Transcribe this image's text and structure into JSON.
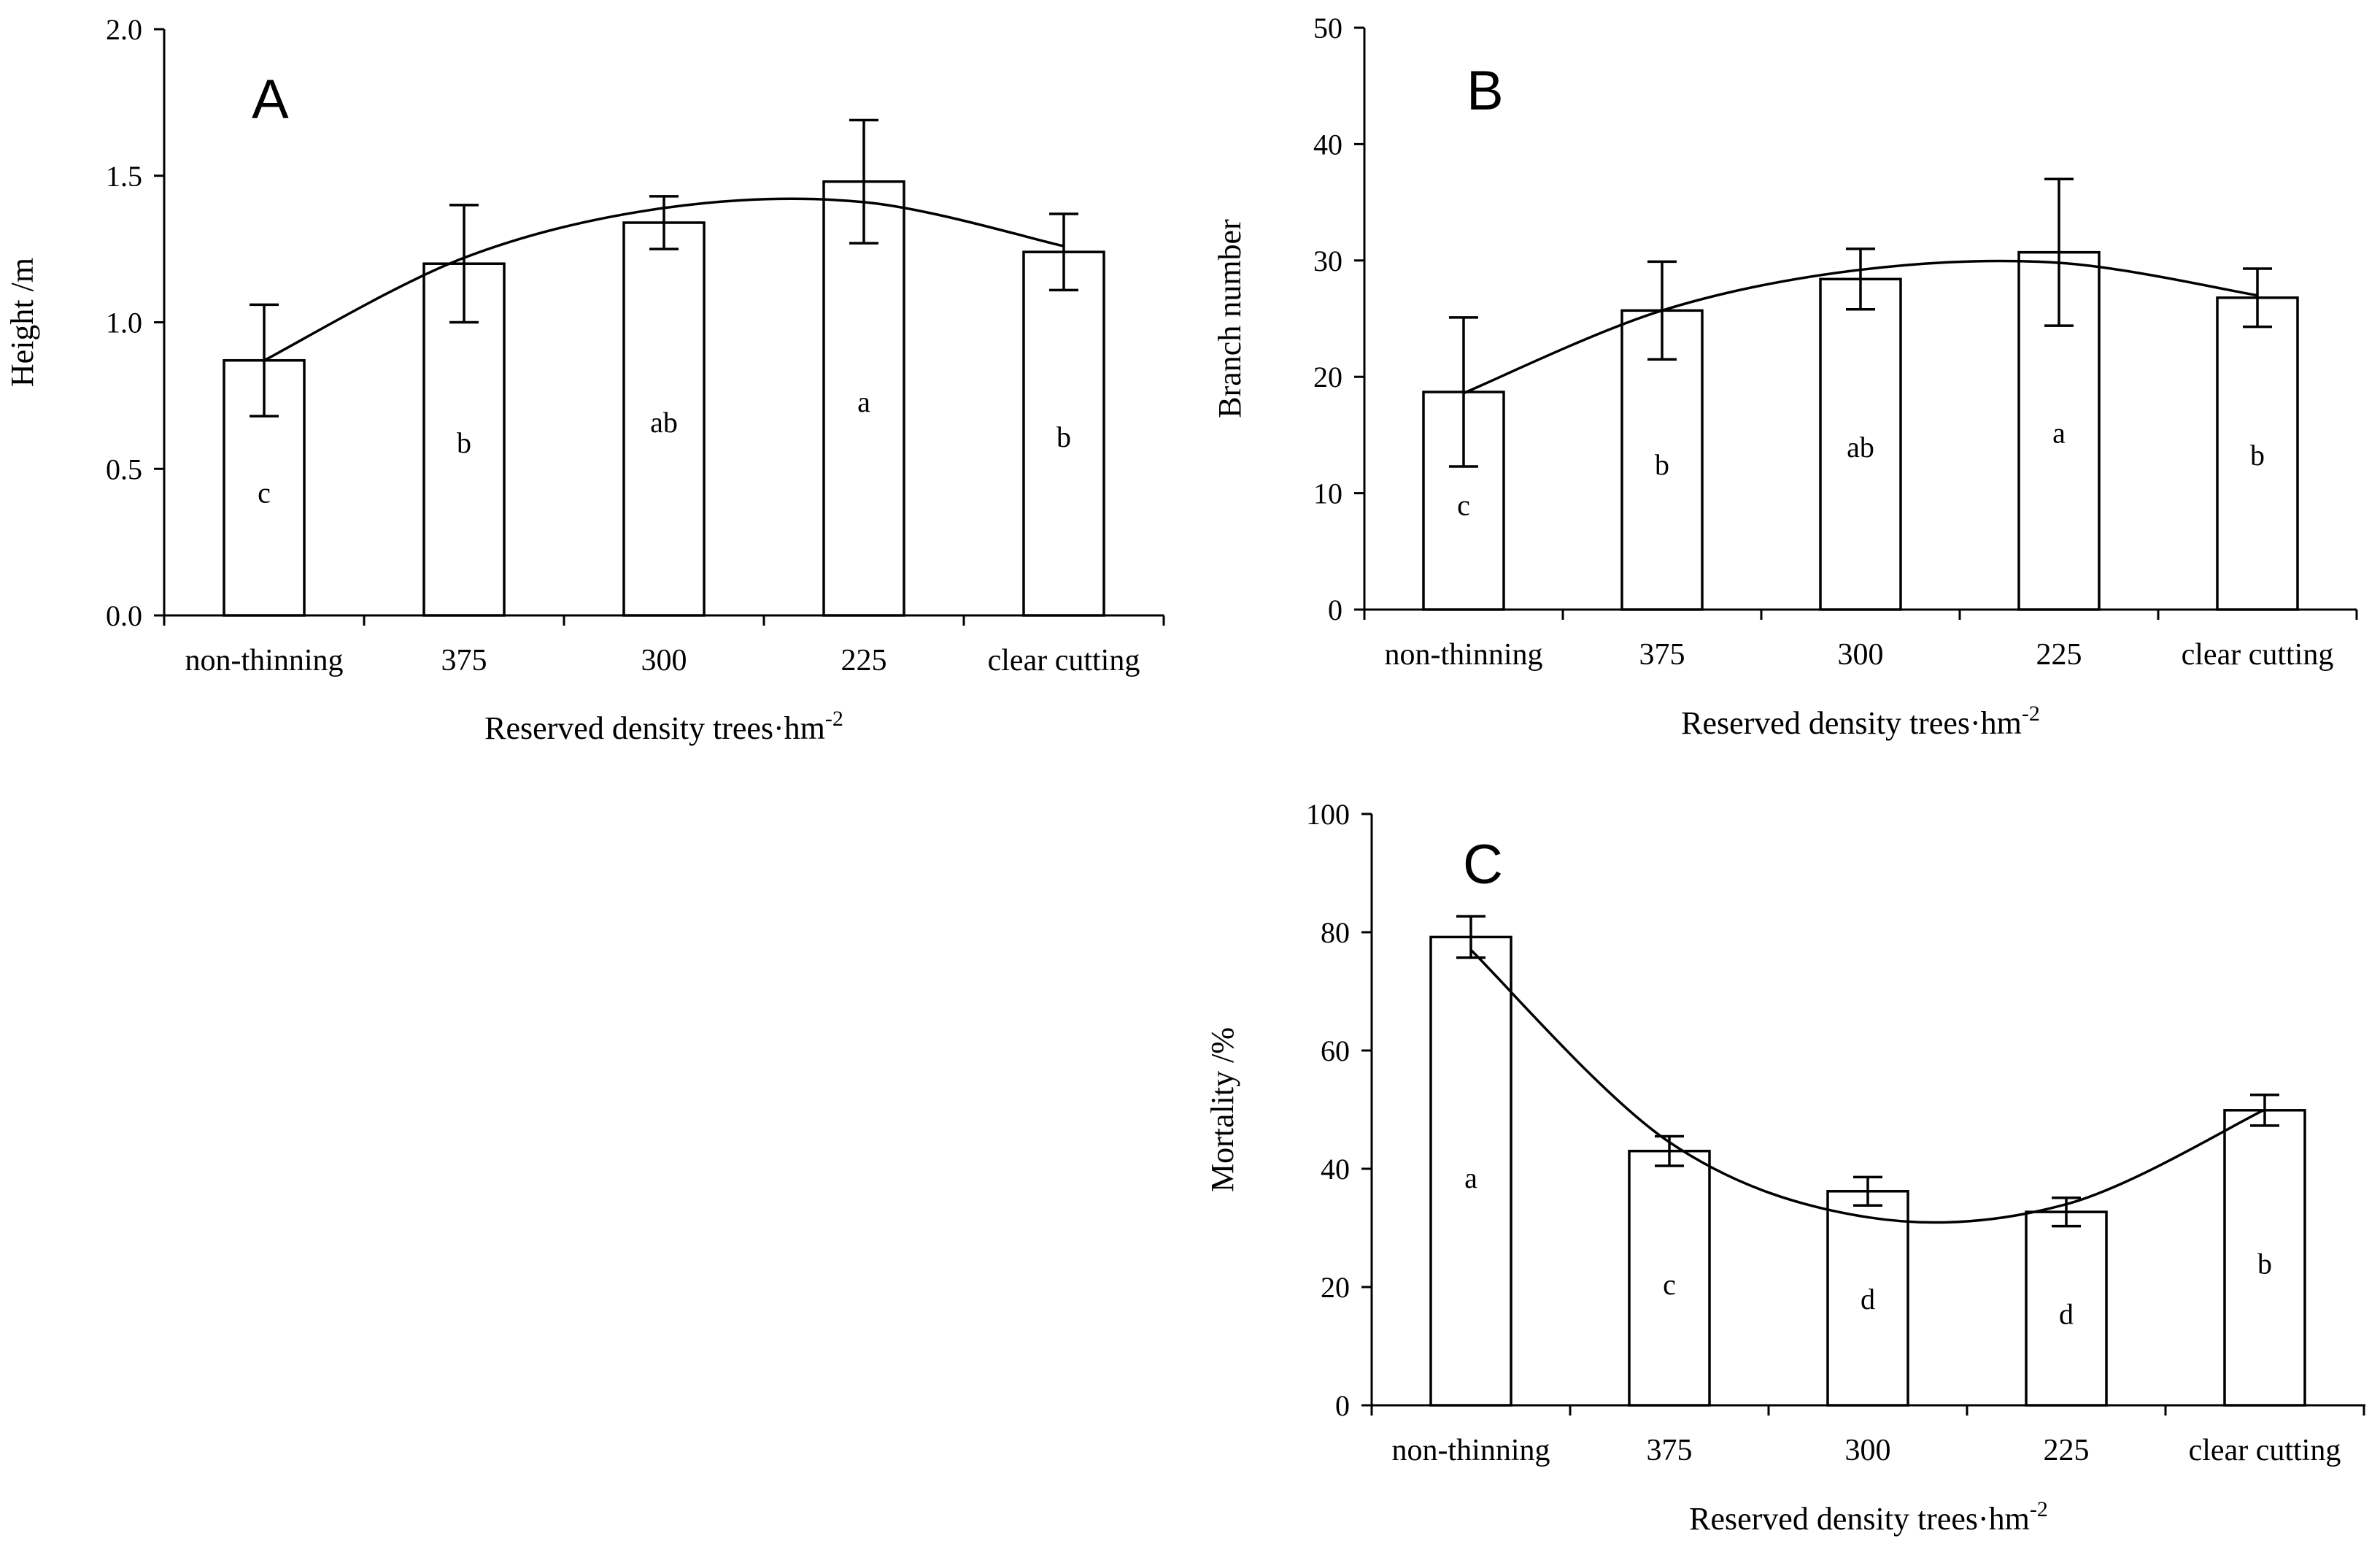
{
  "chart_data": [
    {
      "type": "bar",
      "panel": "A",
      "categories": [
        "non-thinning",
        "375",
        "300",
        "225",
        "clear cutting"
      ],
      "values": [
        0.87,
        1.2,
        1.34,
        1.48,
        1.24
      ],
      "error_bars": [
        0.19,
        0.2,
        0.09,
        0.21,
        0.13
      ],
      "significance": [
        "c",
        "b",
        "ab",
        "a",
        "b"
      ],
      "label_values": [
        0.42,
        0.59,
        0.66,
        0.73,
        0.61
      ],
      "trend_curve": [
        0.87,
        1.22,
        1.39,
        1.41,
        1.26
      ],
      "ylabel": "Height /m",
      "xlabel": "Reserved density trees·hm",
      "xlabel_sup": "-2",
      "ylim": [
        0,
        2
      ],
      "yticks": [
        0,
        0.5,
        1,
        1.5,
        2
      ],
      "ytick_labels": [
        "0.0",
        "0.5",
        "1.0",
        "1.5",
        "2.0"
      ]
    },
    {
      "type": "bar",
      "panel": "B",
      "categories": [
        "non-thinning",
        "375",
        "300",
        "225",
        "clear cutting"
      ],
      "values": [
        18.7,
        25.7,
        28.4,
        30.7,
        26.8
      ],
      "error_bars": [
        6.4,
        4.2,
        2.6,
        6.3,
        2.5
      ],
      "significance": [
        "c",
        "b",
        "ab",
        "a",
        "b"
      ],
      "label_values": [
        9.0,
        12.5,
        14.0,
        15.2,
        13.3
      ],
      "trend_curve": [
        18.6,
        25.7,
        29.2,
        29.8,
        27.0
      ],
      "ylabel": "Branch number",
      "xlabel": "Reserved density trees·hm",
      "xlabel_sup": "-2",
      "ylim": [
        0,
        50
      ],
      "yticks": [
        0,
        10,
        20,
        30,
        40,
        50
      ],
      "ytick_labels": [
        "0",
        "10",
        "20",
        "30",
        "40",
        "50"
      ]
    },
    {
      "type": "bar",
      "panel": "C",
      "categories": [
        "non-thinning",
        "375",
        "300",
        "225",
        "clear cutting"
      ],
      "values": [
        79.2,
        43.0,
        36.2,
        32.7,
        49.9
      ],
      "error_bars": [
        3.5,
        2.5,
        2.4,
        2.4,
        2.6
      ],
      "significance": [
        "a",
        "c",
        "d",
        "d",
        "b"
      ],
      "label_values": [
        38.5,
        20.5,
        18.0,
        15.5,
        24.0
      ],
      "trend_curve": [
        77.0,
        44.5,
        31.8,
        34.0,
        50.0
      ],
      "ylabel": "Mortality /%",
      "xlabel": "Reserved density trees·hm",
      "xlabel_sup": "-2",
      "ylim": [
        0,
        100
      ],
      "yticks": [
        0,
        20,
        40,
        60,
        80,
        100
      ],
      "ytick_labels": [
        "0",
        "20",
        "40",
        "60",
        "80",
        "100"
      ]
    }
  ]
}
